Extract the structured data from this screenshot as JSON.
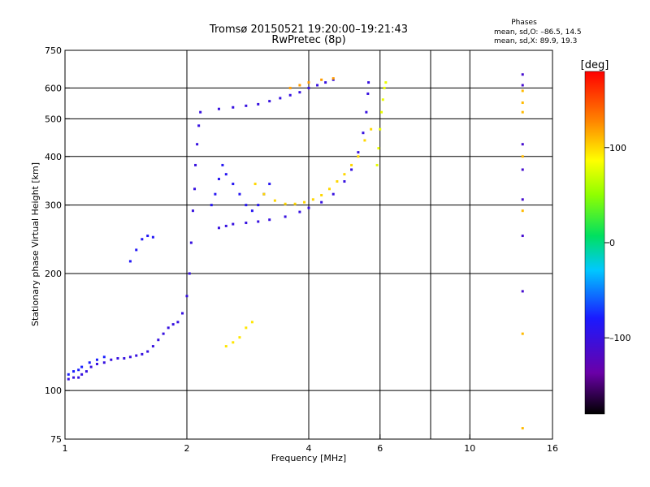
{
  "chart_data": {
    "type": "scatter",
    "title": "Tromsø 20150521 19:20:00–19:21:43",
    "subtitle": "RwPretec (8p)",
    "xlabel": "Frequency [MHz]",
    "ylabel": "Stationary phase Virtual Height [km]",
    "x_scale": "log",
    "y_scale": "log",
    "xlim": [
      1,
      16
    ],
    "ylim": [
      75,
      750
    ],
    "xticks": [
      "1",
      "2",
      "4",
      "6",
      "10",
      "16"
    ],
    "yticks": [
      "75",
      "100",
      "200",
      "300",
      "400",
      "500",
      "600",
      "750"
    ],
    "grid_x": [
      2,
      4,
      6,
      8,
      10
    ],
    "grid_y": [
      100,
      200,
      300,
      400,
      500,
      600
    ],
    "stats": {
      "heading": "Phases",
      "line_o": "mean, sd,O: –86.5, 14.5",
      "line_x": "mean, sd,X:  89.9, 19.3"
    },
    "colorbar": {
      "label": "[deg]",
      "range": [
        -180,
        180
      ],
      "ticks": [
        "100",
        "0",
        "–100"
      ],
      "tick_values": [
        100,
        0,
        -100
      ]
    },
    "traces": [
      {
        "phase": -100,
        "points": [
          [
            1.02,
            107
          ],
          [
            1.05,
            108
          ],
          [
            1.08,
            108
          ],
          [
            1.1,
            110
          ],
          [
            1.13,
            112
          ],
          [
            1.16,
            115
          ],
          [
            1.2,
            117
          ],
          [
            1.25,
            118
          ],
          [
            1.3,
            120
          ],
          [
            1.35,
            121
          ],
          [
            1.4,
            121
          ],
          [
            1.45,
            122
          ],
          [
            1.5,
            123
          ],
          [
            1.55,
            124
          ],
          [
            1.6,
            126
          ],
          [
            1.65,
            130
          ],
          [
            1.7,
            135
          ],
          [
            1.75,
            140
          ],
          [
            1.8,
            145
          ],
          [
            1.85,
            148
          ],
          [
            1.9,
            150
          ],
          [
            1.95,
            158
          ],
          [
            2.0,
            175
          ],
          [
            2.03,
            200
          ],
          [
            2.05,
            240
          ],
          [
            2.07,
            290
          ],
          [
            2.09,
            330
          ],
          [
            2.1,
            380
          ],
          [
            2.12,
            430
          ],
          [
            2.14,
            480
          ],
          [
            2.16,
            520
          ]
        ]
      },
      {
        "phase": -100,
        "points": [
          [
            2.4,
            262
          ],
          [
            2.5,
            265
          ],
          [
            2.6,
            268
          ],
          [
            2.8,
            270
          ],
          [
            3.0,
            272
          ],
          [
            3.2,
            275
          ],
          [
            3.5,
            280
          ],
          [
            3.8,
            288
          ],
          [
            4.0,
            295
          ],
          [
            4.3,
            305
          ],
          [
            4.6,
            320
          ],
          [
            4.9,
            345
          ],
          [
            5.1,
            370
          ],
          [
            5.3,
            410
          ],
          [
            5.45,
            460
          ],
          [
            5.55,
            520
          ],
          [
            5.6,
            580
          ],
          [
            5.62,
            620
          ]
        ]
      },
      {
        "phase": -100,
        "points": [
          [
            2.4,
            530
          ],
          [
            2.6,
            535
          ],
          [
            2.8,
            540
          ],
          [
            3.0,
            545
          ],
          [
            3.2,
            555
          ],
          [
            3.4,
            565
          ],
          [
            3.6,
            575
          ],
          [
            3.8,
            585
          ],
          [
            4.0,
            600
          ],
          [
            4.2,
            610
          ],
          [
            4.4,
            620
          ],
          [
            4.6,
            630
          ]
        ]
      },
      {
        "phase": -88,
        "points": [
          [
            2.3,
            300
          ],
          [
            2.35,
            320
          ],
          [
            2.4,
            350
          ],
          [
            2.45,
            380
          ],
          [
            2.5,
            360
          ],
          [
            2.6,
            340
          ],
          [
            2.7,
            320
          ],
          [
            2.8,
            300
          ],
          [
            2.9,
            290
          ],
          [
            3.0,
            300
          ],
          [
            3.1,
            320
          ],
          [
            3.2,
            340
          ]
        ]
      },
      {
        "phase": -78,
        "points": [
          [
            1.02,
            110
          ],
          [
            1.05,
            112
          ],
          [
            1.08,
            113
          ],
          [
            1.1,
            115
          ],
          [
            1.15,
            118
          ],
          [
            1.2,
            120
          ],
          [
            1.25,
            122
          ]
        ]
      },
      {
        "phase": -85,
        "points": [
          [
            1.45,
            215
          ],
          [
            1.5,
            230
          ],
          [
            1.55,
            245
          ],
          [
            1.6,
            250
          ],
          [
            1.65,
            248
          ]
        ]
      },
      {
        "phase": 100,
        "points": [
          [
            2.95,
            340
          ],
          [
            3.1,
            320
          ],
          [
            3.3,
            308
          ],
          [
            3.5,
            302
          ],
          [
            3.7,
            302
          ],
          [
            3.9,
            305
          ],
          [
            4.1,
            310
          ],
          [
            4.3,
            318
          ],
          [
            4.5,
            330
          ],
          [
            4.7,
            345
          ],
          [
            4.9,
            360
          ],
          [
            5.1,
            380
          ],
          [
            5.3,
            400
          ],
          [
            5.5,
            440
          ],
          [
            5.7,
            470
          ]
        ]
      },
      {
        "phase": 80,
        "points": [
          [
            5.9,
            380
          ],
          [
            5.95,
            420
          ],
          [
            6.0,
            470
          ],
          [
            6.05,
            520
          ],
          [
            6.1,
            560
          ],
          [
            6.15,
            600
          ],
          [
            6.2,
            620
          ]
        ]
      },
      {
        "phase": 95,
        "points": [
          [
            2.5,
            130
          ],
          [
            2.6,
            133
          ],
          [
            2.7,
            137
          ],
          [
            2.8,
            145
          ],
          [
            2.9,
            150
          ]
        ]
      },
      {
        "phase": 120,
        "points": [
          [
            3.6,
            600
          ],
          [
            3.8,
            610
          ],
          [
            4.0,
            620
          ],
          [
            4.3,
            630
          ],
          [
            4.6,
            635
          ]
        ]
      },
      {
        "phase": -110,
        "points": [
          [
            13.5,
            650
          ],
          [
            13.5,
            610
          ],
          [
            13.5,
            430
          ],
          [
            13.5,
            370
          ],
          [
            13.5,
            310
          ],
          [
            13.5,
            250
          ],
          [
            13.5,
            180
          ]
        ]
      },
      {
        "phase": 110,
        "points": [
          [
            13.5,
            590
          ],
          [
            13.5,
            550
          ],
          [
            13.5,
            520
          ],
          [
            13.5,
            400
          ],
          [
            13.5,
            290
          ],
          [
            13.5,
            140
          ],
          [
            13.5,
            80
          ]
        ]
      }
    ]
  }
}
